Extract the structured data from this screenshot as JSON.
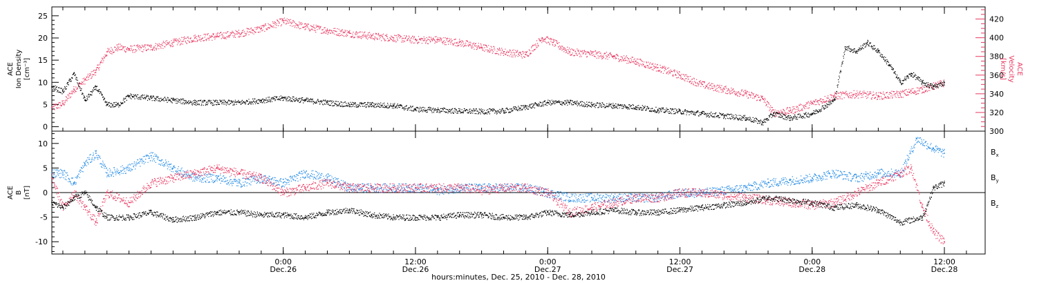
{
  "chart_data": {
    "type": "scatter",
    "xlabel": "hours:minutes, Dec. 25, 2010 - Dec. 28, 2010",
    "x_range_hours_since_dec25_0000": [
      3.0,
      87.7
    ],
    "x_ticks": [
      {
        "hours": 24,
        "time": "0:00",
        "day": "Dec.26"
      },
      {
        "hours": 36,
        "time": "12:00",
        "day": "Dec.26"
      },
      {
        "hours": 48,
        "time": "0:00",
        "day": "Dec.27"
      },
      {
        "hours": 60,
        "time": "12:00",
        "day": "Dec.27"
      },
      {
        "hours": 72,
        "time": "0:00",
        "day": "Dec.28"
      },
      {
        "hours": 84,
        "time": "12:00",
        "day": "Dec.28"
      }
    ],
    "panels": [
      {
        "id": "plasma",
        "ylabel_left": [
          "ACE",
          "Ion Density",
          "[cm⁻³]"
        ],
        "ylabel_right": [
          "ACE",
          "Velocity",
          "[km/s]"
        ],
        "ylim_left": [
          -1,
          27
        ],
        "yticks_left": [
          0,
          5,
          10,
          15,
          20,
          25
        ],
        "ylim_right": [
          300,
          433
        ],
        "yticks_right": [
          300,
          320,
          340,
          360,
          380,
          400,
          420
        ],
        "series": [
          {
            "name": "Ion Density",
            "axis": "left",
            "color": "#000000",
            "x": [
              3.0,
              4.0,
              5.0,
              6.0,
              7.0,
              8.0,
              9.0,
              10.0,
              12.0,
              14.0,
              16.0,
              18.0,
              20.0,
              22.0,
              24.0,
              26.0,
              28.0,
              30.0,
              32.0,
              34.0,
              36.0,
              38.0,
              40.0,
              42.0,
              44.0,
              46.0,
              48.0,
              50.0,
              52.0,
              54.0,
              56.0,
              58.0,
              60.0,
              62.0,
              64.0,
              66.0,
              67.5,
              68.5,
              70.0,
              72.0,
              74.0,
              75.0,
              76.0,
              77.0,
              78.0,
              79.0,
              80.0,
              81.0,
              82.0,
              83.0,
              84.0
            ],
            "y": [
              9,
              8,
              12,
              6,
              9,
              5,
              5,
              7,
              6.5,
              6,
              5.5,
              5.5,
              5.5,
              6,
              6.5,
              6,
              5.5,
              5,
              5,
              4.8,
              4,
              3.8,
              3.6,
              3.5,
              3.6,
              4.5,
              5.5,
              5.5,
              5,
              4.8,
              4.5,
              3.8,
              3.5,
              3,
              2.5,
              2,
              1,
              3,
              2,
              3,
              6,
              18,
              17,
              19,
              17,
              14,
              10,
              12,
              10,
              9,
              10
            ]
          },
          {
            "name": "Velocity",
            "axis": "right",
            "color": "#e8355e",
            "x": [
              3.0,
              4.0,
              5.0,
              6.0,
              7.0,
              8.0,
              9.0,
              10.0,
              12.0,
              14.0,
              16.0,
              18.0,
              20.0,
              22.0,
              24.0,
              26.0,
              28.0,
              30.0,
              32.0,
              34.0,
              36.0,
              38.0,
              40.0,
              42.0,
              44.0,
              46.0,
              47.5,
              48.5,
              50.0,
              52.0,
              54.0,
              56.0,
              58.0,
              60.0,
              62.0,
              64.0,
              66.0,
              67.5,
              68.5,
              70.0,
              72.0,
              74.0,
              76.0,
              78.0,
              80.0,
              82.0,
              84.0
            ],
            "y": [
              325,
              330,
              345,
              355,
              365,
              385,
              390,
              388,
              390,
              395,
              400,
              402,
              405,
              410,
              418,
              412,
              408,
              405,
              402,
              400,
              398,
              398,
              395,
              390,
              385,
              382,
              400,
              395,
              385,
              383,
              380,
              375,
              368,
              360,
              350,
              345,
              340,
              335,
              320,
              322,
              330,
              338,
              340,
              338,
              340,
              345,
              352
            ]
          }
        ]
      },
      {
        "id": "magnetic",
        "ylabel_left": [
          "ACE",
          "B",
          "[nT]"
        ],
        "ylim": [
          -12.5,
          12.5
        ],
        "yticks": [
          -10,
          -5,
          0,
          5,
          10
        ],
        "zero_line": true,
        "legend_position": "right",
        "series": [
          {
            "name": "Bx",
            "label_main": "B",
            "label_sub": "x",
            "color": "#000000",
            "x": [
              3.0,
              4.0,
              5.0,
              6.0,
              7.0,
              8.0,
              10.0,
              12.0,
              14.0,
              16.0,
              18.0,
              20.0,
              22.0,
              24.0,
              26.0,
              28.0,
              30.0,
              32.0,
              34.0,
              36.0,
              38.0,
              40.0,
              42.0,
              44.0,
              46.0,
              48.0,
              50.0,
              52.0,
              54.0,
              56.0,
              58.0,
              60.0,
              62.0,
              64.0,
              66.0,
              68.0,
              70.0,
              72.0,
              74.0,
              76.0,
              78.0,
              80.0,
              82.0,
              83.0,
              84.0
            ],
            "y": [
              -2,
              -3,
              -1,
              0,
              -3,
              -5,
              -5,
              -4,
              -5.5,
              -5,
              -4,
              -4,
              -4.5,
              -4.5,
              -5,
              -4,
              -3.5,
              -4.5,
              -5,
              -5,
              -5,
              -4.5,
              -4.5,
              -5,
              -5,
              -4,
              -4.5,
              -4,
              -3.5,
              -4,
              -4,
              -3.5,
              -3,
              -2.5,
              -2,
              -1,
              -1.5,
              -2,
              -3,
              -2.5,
              -3.5,
              -6,
              -5,
              1,
              2
            ]
          },
          {
            "name": "By",
            "label_main": "B",
            "label_sub": "y",
            "color": "#1e88e5",
            "x": [
              3.0,
              4.0,
              5.0,
              6.0,
              7.0,
              8.0,
              10.0,
              12.0,
              14.0,
              16.0,
              18.0,
              20.0,
              22.0,
              24.0,
              26.0,
              28.0,
              30.0,
              32.0,
              34.0,
              36.0,
              38.0,
              40.0,
              42.0,
              44.0,
              46.0,
              48.0,
              50.0,
              52.0,
              54.0,
              56.0,
              58.0,
              60.0,
              62.0,
              64.0,
              66.0,
              68.0,
              70.0,
              72.0,
              74.0,
              76.0,
              78.0,
              80.0,
              81.5,
              83.0,
              84.0
            ],
            "y": [
              4,
              4,
              2,
              6,
              8,
              4,
              5,
              7.5,
              5,
              3,
              3,
              2,
              3,
              2,
              4,
              3,
              1,
              1,
              1,
              1,
              0.5,
              1,
              1,
              1,
              1,
              0,
              -1,
              -1,
              -1,
              -1,
              -1,
              0,
              0,
              0.5,
              1,
              2,
              2.5,
              3,
              4,
              3,
              4,
              4,
              11,
              9,
              8
            ]
          },
          {
            "name": "Bz",
            "label_main": "B",
            "label_sub": "z",
            "color": "#e8355e",
            "x": [
              3.0,
              4.0,
              5.0,
              6.0,
              7.0,
              8.0,
              10.0,
              12.0,
              14.0,
              16.0,
              18.0,
              20.0,
              22.0,
              24.0,
              26.0,
              28.0,
              30.0,
              32.0,
              34.0,
              36.0,
              38.0,
              40.0,
              42.0,
              44.0,
              46.0,
              48.0,
              50.0,
              52.0,
              54.0,
              56.0,
              58.0,
              60.0,
              62.0,
              64.0,
              66.0,
              68.0,
              70.0,
              72.0,
              74.0,
              76.0,
              78.0,
              80.0,
              81.0,
              82.0,
              83.0,
              84.0
            ],
            "y": [
              3,
              -3,
              0,
              -3,
              -6,
              0,
              -2,
              2,
              3,
              4,
              5,
              4,
              3,
              0,
              1,
              2,
              1,
              1,
              1,
              1,
              1,
              1,
              0.5,
              1,
              1,
              0,
              -4,
              -3,
              -2,
              -1,
              -1,
              0,
              0,
              -0.5,
              -1,
              -1.5,
              -2,
              -2.5,
              -2,
              0,
              2,
              4,
              5,
              -3,
              -8,
              -10
            ]
          }
        ]
      }
    ]
  }
}
